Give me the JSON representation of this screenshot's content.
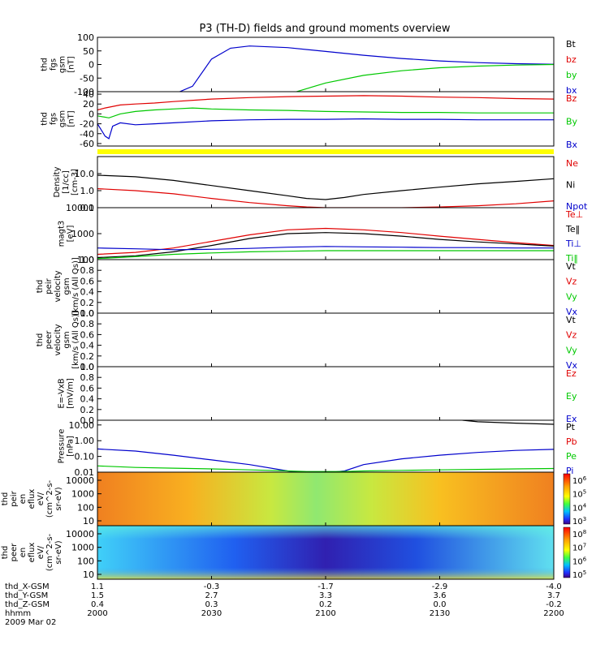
{
  "title": "P3 (TH-D) fields and ground moments overview",
  "colors": {
    "black": "#000000",
    "red": "#e00000",
    "green": "#00c800",
    "blue": "#0000cc",
    "yellow": "#ffff00"
  },
  "chart_data": [
    {
      "type": "line",
      "ylabel": [
        "thd",
        "fgs",
        "gsm",
        "[nT]"
      ],
      "ylim": [
        -100,
        100
      ],
      "yticks": [
        100,
        50,
        0,
        -50,
        -100
      ],
      "legend": [
        {
          "text": "Bt",
          "color": "black"
        },
        {
          "text": "bz",
          "color": "red"
        },
        {
          "text": "by",
          "color": "green"
        },
        {
          "text": "bx",
          "color": "blue"
        }
      ],
      "series": [
        {
          "color": "blue",
          "x": [
            0,
            20,
            25,
            30,
            35,
            40,
            50,
            60,
            70,
            80,
            90,
            100,
            110,
            120
          ],
          "y": [
            -110,
            -110,
            -80,
            20,
            60,
            68,
            62,
            48,
            34,
            22,
            13,
            7,
            3,
            1
          ]
        },
        {
          "color": "green",
          "x": [
            0,
            50,
            60,
            70,
            80,
            90,
            100,
            110,
            120
          ],
          "y": [
            -110,
            -110,
            -68,
            -40,
            -23,
            -12,
            -6,
            -2,
            0
          ]
        }
      ]
    },
    {
      "type": "line",
      "ylabel": [
        "thd",
        "fgs",
        "gsm",
        "[nT]"
      ],
      "ylim": [
        -65,
        45
      ],
      "yticks": [
        40,
        20,
        0,
        -20,
        -40,
        -60
      ],
      "legend": [
        {
          "text": "Bz",
          "color": "red"
        },
        {
          "text": "By",
          "color": "green"
        },
        {
          "text": "Bx",
          "color": "blue"
        }
      ],
      "series": [
        {
          "color": "red",
          "x": [
            0,
            2,
            6,
            10,
            15,
            20,
            30,
            40,
            50,
            60,
            70,
            80,
            90,
            100,
            110,
            120
          ],
          "y": [
            8,
            12,
            18,
            20,
            22,
            25,
            30,
            33,
            35,
            36,
            37,
            36,
            34,
            33,
            31,
            30
          ]
        },
        {
          "color": "green",
          "x": [
            0,
            3,
            6,
            10,
            15,
            20,
            25,
            30,
            40,
            50,
            60,
            70,
            80,
            90,
            100,
            110,
            120
          ],
          "y": [
            -4,
            -8,
            0,
            5,
            8,
            10,
            12,
            10,
            8,
            7,
            5,
            4,
            3,
            3,
            2,
            2,
            2
          ]
        },
        {
          "color": "blue",
          "x": [
            0,
            2,
            3,
            4,
            6,
            10,
            15,
            20,
            30,
            40,
            50,
            60,
            70,
            80,
            90,
            100,
            110,
            120
          ],
          "y": [
            -20,
            -45,
            -50,
            -25,
            -18,
            -22,
            -20,
            -18,
            -14,
            -12,
            -11,
            -11,
            -10,
            -11,
            -11,
            -12,
            -12,
            -12
          ]
        }
      ]
    },
    {
      "type": "line",
      "ylabel": [
        "Density",
        "[1/cc]",
        "[cm-3]"
      ],
      "yscale": "log",
      "ylim": [
        0.1,
        100
      ],
      "ytick_labels": [
        "10.0",
        "1.0",
        "0.1"
      ],
      "ytick_values": [
        10,
        1,
        0.1
      ],
      "legend": [
        {
          "text": "Ne",
          "color": "red"
        },
        {
          "text": "Ni",
          "color": "black"
        },
        {
          "text": "Npot",
          "color": "blue"
        }
      ],
      "series": [
        {
          "color": "black",
          "x": [
            0,
            10,
            20,
            30,
            40,
            50,
            55,
            60,
            65,
            70,
            80,
            90,
            100,
            110,
            120
          ],
          "y": [
            8,
            6.5,
            4,
            2,
            1,
            0.5,
            0.35,
            0.3,
            0.4,
            0.6,
            1,
            1.6,
            2.5,
            3.5,
            5
          ]
        },
        {
          "color": "red",
          "x": [
            0,
            10,
            20,
            30,
            40,
            50,
            55,
            60,
            65,
            70,
            80,
            90,
            100,
            110,
            120
          ],
          "y": [
            1.3,
            1.0,
            0.65,
            0.35,
            0.2,
            0.13,
            0.11,
            0.1,
            0.1,
            0.1,
            0.1,
            0.11,
            0.13,
            0.17,
            0.25
          ]
        }
      ]
    },
    {
      "type": "line",
      "ylabel": [
        "magt3",
        "[eV]"
      ],
      "yscale": "log",
      "ylim": [
        100,
        10000
      ],
      "ytick_labels": [
        "10000",
        "1000",
        "100"
      ],
      "ytick_values": [
        10000,
        1000,
        100
      ],
      "legend": [
        {
          "text": "Te⊥",
          "color": "red"
        },
        {
          "text": "Te‖",
          "color": "black"
        },
        {
          "text": "Ti⊥",
          "color": "blue"
        },
        {
          "text": "Ti‖",
          "color": "green"
        }
      ],
      "series": [
        {
          "color": "red",
          "x": [
            0,
            10,
            20,
            30,
            40,
            50,
            60,
            70,
            80,
            90,
            100,
            110,
            120
          ],
          "y": [
            160,
            190,
            280,
            500,
            900,
            1400,
            1600,
            1400,
            1100,
            800,
            600,
            450,
            350
          ]
        },
        {
          "color": "black",
          "x": [
            0,
            10,
            20,
            30,
            40,
            50,
            60,
            70,
            80,
            90,
            100,
            110,
            120
          ],
          "y": [
            120,
            140,
            200,
            350,
            650,
            1000,
            1100,
            1000,
            800,
            600,
            480,
            400,
            330
          ]
        },
        {
          "color": "blue",
          "x": [
            0,
            10,
            20,
            30,
            40,
            50,
            60,
            70,
            80,
            90,
            100,
            110,
            120
          ],
          "y": [
            280,
            260,
            240,
            250,
            270,
            300,
            320,
            310,
            300,
            290,
            290,
            280,
            280
          ]
        },
        {
          "color": "green",
          "x": [
            0,
            10,
            20,
            30,
            40,
            50,
            60,
            70,
            80,
            90,
            100,
            110,
            120
          ],
          "y": [
            110,
            130,
            160,
            180,
            200,
            210,
            220,
            220,
            220,
            220,
            220,
            220,
            220
          ]
        }
      ]
    },
    {
      "type": "line",
      "ylabel": [
        "thd",
        "peir",
        "velocity",
        "gsm",
        "[km/s (All Qs)]"
      ],
      "ylim": [
        0,
        1
      ],
      "yticks": [
        "1.0",
        "0.8",
        "0.6",
        "0.4",
        "0.2",
        "0.0"
      ],
      "legend": [
        {
          "text": "Vt",
          "color": "black"
        },
        {
          "text": "Vz",
          "color": "red"
        },
        {
          "text": "Vy",
          "color": "green"
        },
        {
          "text": "Vx",
          "color": "blue"
        }
      ],
      "series": []
    },
    {
      "type": "line",
      "ylabel": [
        "thd",
        "peer",
        "velocity",
        "gsm",
        "[km/s (All Qs)]"
      ],
      "ylim": [
        0,
        1
      ],
      "yticks": [
        "1.0",
        "0.8",
        "0.6",
        "0.4",
        "0.2",
        "0.0"
      ],
      "legend": [
        {
          "text": "Vt",
          "color": "black"
        },
        {
          "text": "Vz",
          "color": "red"
        },
        {
          "text": "Vy",
          "color": "green"
        },
        {
          "text": "Vx",
          "color": "blue"
        }
      ],
      "series": []
    },
    {
      "type": "line",
      "ylabel": [
        "E=-VxB",
        "[mV/m]"
      ],
      "ylim": [
        0,
        1
      ],
      "yticks": [
        "1.0",
        "0.8",
        "0.6",
        "0.4",
        "0.2",
        "0.0"
      ],
      "legend": [
        {
          "text": "Ez",
          "color": "red"
        },
        {
          "text": "Ey",
          "color": "green"
        },
        {
          "text": "Ex",
          "color": "blue"
        }
      ],
      "series": []
    },
    {
      "type": "line",
      "ylabel": [
        "Pressure",
        "[nPa]"
      ],
      "yscale": "log",
      "ylim": [
        0.01,
        20
      ],
      "ytick_labels": [
        "10.00",
        "1.00",
        "0.10",
        "0.01"
      ],
      "ytick_values": [
        10,
        1,
        0.1,
        0.01
      ],
      "legend": [
        {
          "text": "Pt",
          "color": "black"
        },
        {
          "text": "Pb",
          "color": "red"
        },
        {
          "text": "Pe",
          "color": "green"
        },
        {
          "text": "Pi",
          "color": "blue"
        }
      ],
      "series": [
        {
          "color": "black",
          "x": [
            96,
            100,
            110,
            120
          ],
          "y": [
            20,
            16,
            13,
            11
          ]
        },
        {
          "color": "blue",
          "x": [
            0,
            10,
            20,
            30,
            40,
            50,
            55,
            60,
            65,
            70,
            80,
            90,
            100,
            110,
            120
          ],
          "y": [
            0.3,
            0.22,
            0.12,
            0.06,
            0.03,
            0.012,
            0.009,
            0.009,
            0.012,
            0.03,
            0.07,
            0.12,
            0.18,
            0.24,
            0.28
          ]
        },
        {
          "color": "green",
          "x": [
            0,
            10,
            20,
            30,
            40,
            50,
            55,
            60,
            65,
            70,
            80,
            90,
            100,
            110,
            120
          ],
          "y": [
            0.025,
            0.02,
            0.018,
            0.016,
            0.014,
            0.012,
            0.011,
            0.011,
            0.011,
            0.012,
            0.013,
            0.014,
            0.015,
            0.016,
            0.017
          ]
        }
      ]
    },
    {
      "type": "heatmap",
      "ylabel": [
        "thd",
        "peir",
        "en",
        "eflux",
        "eV/",
        "(cm^2-s-",
        "sr-eV)"
      ],
      "yscale": "log",
      "ytick_labels": [
        "10000",
        "1000",
        "100",
        "10"
      ],
      "colorbar": [
        "10^6",
        "10^5",
        "10^4",
        "10^3"
      ]
    },
    {
      "type": "heatmap",
      "ylabel": [
        "thd",
        "peer",
        "en",
        "eflux",
        "eV/",
        "(cm^2-s-",
        "sr-eV)"
      ],
      "yscale": "log",
      "ytick_labels": [
        "10000",
        "1000",
        "100",
        "10"
      ],
      "colorbar": [
        "10^8",
        "10^7",
        "10^6",
        "10^5"
      ]
    }
  ],
  "xaxis": {
    "rows": [
      {
        "label": "thd_X-GSM",
        "values": [
          "1.1",
          "-0.3",
          "-1.7",
          "-2.9",
          "-4.0"
        ]
      },
      {
        "label": "thd_Y-GSM",
        "values": [
          "1.5",
          "2.7",
          "3.3",
          "3.6",
          "3.7"
        ]
      },
      {
        "label": "thd_Z-GSM",
        "values": [
          "0.4",
          "0.3",
          "0.2",
          "0.0",
          "-0.2"
        ]
      },
      {
        "label": "hhmm",
        "values": [
          "2000",
          "2030",
          "2100",
          "2130",
          "2200"
        ]
      }
    ],
    "date": "2009 Mar 02",
    "tick_minutes": [
      0,
      30,
      60,
      90,
      120
    ]
  }
}
